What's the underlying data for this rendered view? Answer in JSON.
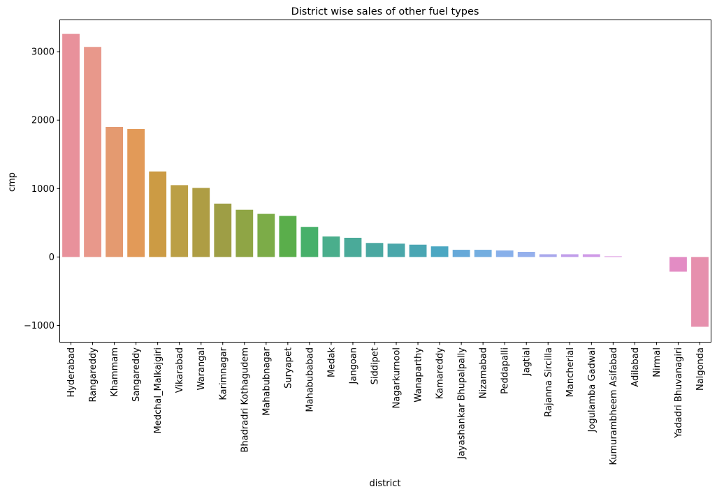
{
  "chart_data": {
    "type": "bar",
    "title": "District wise sales of other fuel types",
    "xlabel": "district",
    "ylabel": "cmp",
    "ylim": [
      -1240,
      3460
    ],
    "yticks": [
      -1000,
      0,
      1000,
      2000,
      3000
    ],
    "ytick_labels": [
      "−1000",
      "0",
      "1000",
      "2000",
      "3000"
    ],
    "grid": false,
    "categories": [
      "Hyderabad",
      "Rangareddy",
      "Khammam",
      "Sangareddy",
      "Medchal_Malkajgiri",
      "Vikarabad",
      "Warangal",
      "Karimnagar",
      "Bhadradri Kothagudem",
      "Mahabubnagar",
      "Suryapet",
      "Mahabubabad",
      "Medak",
      "Jangoan",
      "Siddipet",
      "Nagarkurnool",
      "Wanaparthy",
      "Kamareddy",
      "Jayashankar Bhupalpally",
      "Nizamabad",
      "Peddapalli",
      "Jagtial",
      "Rajanna Sircilla",
      "Mancherial",
      "Jogulamba Gadwal",
      "Kumurambheem Asifabad",
      "Adilabad",
      "Nirmal",
      "Yadadri Bhuvanagiri",
      "Nalgonda"
    ],
    "values": [
      3260,
      3070,
      1900,
      1870,
      1250,
      1050,
      1010,
      780,
      690,
      630,
      600,
      440,
      300,
      280,
      205,
      195,
      180,
      155,
      105,
      105,
      95,
      75,
      40,
      40,
      40,
      10,
      0,
      0,
      -215,
      -1020
    ],
    "colors": [
      "#e8919b",
      "#e8988b",
      "#e49a70",
      "#e29a58",
      "#cc9b44",
      "#bb9f45",
      "#ae9d44",
      "#9e9e45",
      "#8fa545",
      "#7cac48",
      "#5aae4b",
      "#47b06a",
      "#4aae8c",
      "#4aaa99",
      "#4aa8a1",
      "#4aa7aa",
      "#4aa6b3",
      "#4ba7c2",
      "#66a9d9",
      "#74aee0",
      "#88b0ea",
      "#95b0ec",
      "#a9a8ec",
      "#c19eea",
      "#cf9ae7",
      "#db98e0",
      "#e39bd7",
      "#e89bcf",
      "#e38cc4",
      "#e690ad"
    ]
  }
}
